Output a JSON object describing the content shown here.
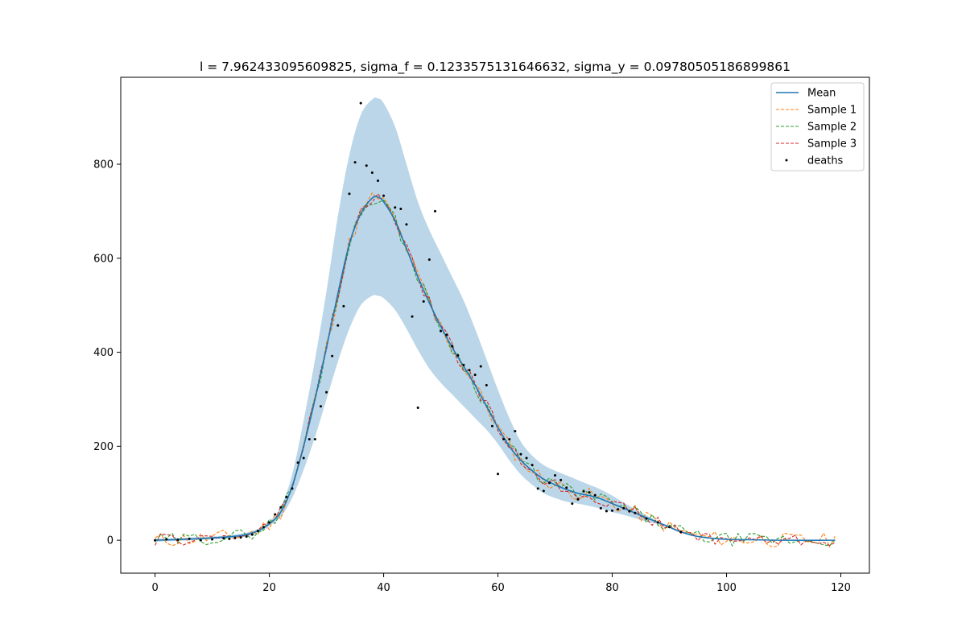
{
  "chart_data": {
    "type": "line",
    "title": "l = 7.962433095609825, sigma_f = 0.1233575131646632, sigma_y = 0.09780505186899861",
    "xlabel": "",
    "ylabel": "",
    "xlim": [
      -6,
      125
    ],
    "ylim": [
      -70,
      985
    ],
    "x_ticks": [
      0,
      20,
      40,
      60,
      80,
      100,
      120
    ],
    "y_ticks": [
      0,
      200,
      400,
      600,
      800
    ],
    "grid": false,
    "legend_position": "top-right",
    "colors": {
      "mean": "#1f77b4",
      "band": "#1f77b4",
      "sample1": "#ff7f0e",
      "sample2": "#2ca02c",
      "sample3": "#d62728",
      "deaths": "#000000"
    },
    "legend": [
      {
        "label": "Mean",
        "kind": "line",
        "color": "#1f77b4",
        "dash": false
      },
      {
        "label": "Sample 1",
        "kind": "line",
        "color": "#ff7f0e",
        "dash": true
      },
      {
        "label": "Sample 2",
        "kind": "line",
        "color": "#2ca02c",
        "dash": true
      },
      {
        "label": "Sample 3",
        "kind": "line",
        "color": "#d62728",
        "dash": true
      },
      {
        "label": "deaths",
        "kind": "point",
        "color": "#000000",
        "dash": false
      }
    ],
    "mean": {
      "x": [
        0,
        5,
        10,
        15,
        18,
        20,
        22,
        24,
        26,
        28,
        30,
        32,
        34,
        36,
        38,
        39,
        40,
        42,
        44,
        46,
        48,
        50,
        52,
        54,
        56,
        58,
        60,
        62,
        64,
        66,
        68,
        70,
        72,
        74,
        76,
        78,
        80,
        82,
        84,
        86,
        88,
        90,
        92,
        95,
        100,
        105,
        110,
        119
      ],
      "y": [
        0,
        2,
        5,
        10,
        20,
        35,
        60,
        115,
        200,
        300,
        410,
        525,
        630,
        695,
        728,
        730,
        720,
        680,
        620,
        560,
        505,
        455,
        410,
        370,
        330,
        285,
        240,
        200,
        170,
        148,
        130,
        118,
        108,
        100,
        95,
        88,
        78,
        68,
        58,
        48,
        38,
        28,
        18,
        8,
        2,
        1,
        0,
        0
      ]
    },
    "band": {
      "x": [
        0,
        10,
        15,
        18,
        20,
        22,
        24,
        26,
        28,
        30,
        32,
        34,
        36,
        38,
        39,
        40,
        42,
        44,
        46,
        48,
        50,
        52,
        54,
        56,
        58,
        60,
        62,
        64,
        66,
        68,
        70,
        72,
        74,
        76,
        78,
        80,
        82,
        84,
        86,
        88,
        90,
        92,
        95,
        100,
        110,
        119
      ],
      "upper": [
        3,
        8,
        14,
        24,
        40,
        70,
        140,
        255,
        385,
        530,
        690,
        820,
        905,
        938,
        940,
        930,
        880,
        800,
        720,
        660,
        610,
        560,
        510,
        450,
        385,
        320,
        260,
        210,
        180,
        160,
        148,
        138,
        128,
        118,
        108,
        95,
        80,
        66,
        53,
        40,
        30,
        20,
        9,
        2,
        1,
        1
      ],
      "lower": [
        -3,
        2,
        6,
        15,
        30,
        50,
        90,
        150,
        220,
        300,
        380,
        450,
        500,
        520,
        520,
        515,
        490,
        450,
        405,
        365,
        335,
        310,
        285,
        260,
        235,
        205,
        170,
        140,
        118,
        100,
        90,
        82,
        78,
        73,
        67,
        60,
        54,
        47,
        40,
        34,
        26,
        16,
        7,
        2,
        0,
        -1
      ]
    },
    "samples": [
      {
        "name": "Sample 1",
        "amplitude": 16,
        "seed": 11
      },
      {
        "name": "Sample 2",
        "amplitude": 14,
        "seed": 29
      },
      {
        "name": "Sample 3",
        "amplitude": 13,
        "seed": 47
      }
    ],
    "deaths": {
      "x": [
        0,
        2,
        4,
        6,
        8,
        10,
        12,
        13,
        14,
        15,
        16,
        17,
        18,
        19,
        20,
        21,
        22,
        23,
        24,
        25,
        26,
        27,
        28,
        29,
        30,
        31,
        32,
        33,
        34,
        35,
        36,
        37,
        38,
        39,
        40,
        42,
        43,
        44,
        45,
        46,
        47,
        48,
        49,
        50,
        51,
        52,
        53,
        54,
        55,
        56,
        57,
        58,
        59,
        60,
        61,
        62,
        63,
        64,
        65,
        66,
        67,
        68,
        69,
        70,
        71,
        72,
        73,
        74,
        75,
        76,
        77,
        78,
        79,
        80,
        81,
        82,
        83,
        84,
        86,
        88,
        90,
        92
      ],
      "y": [
        0,
        2,
        1,
        3,
        0,
        2,
        4,
        3,
        5,
        6,
        8,
        12,
        20,
        28,
        38,
        55,
        70,
        92,
        110,
        165,
        175,
        215,
        215,
        285,
        315,
        392,
        457,
        498,
        737,
        804,
        930,
        797,
        782,
        765,
        733,
        708,
        705,
        672,
        476,
        282,
        508,
        597,
        700,
        445,
        437,
        413,
        393,
        373,
        362,
        352,
        370,
        330,
        243,
        141,
        215,
        215,
        232,
        183,
        175,
        160,
        110,
        105,
        122,
        138,
        128,
        112,
        78,
        87,
        104,
        102,
        96,
        68,
        62,
        63,
        66,
        68,
        62,
        58,
        46,
        38,
        28,
        18
      ]
    }
  }
}
